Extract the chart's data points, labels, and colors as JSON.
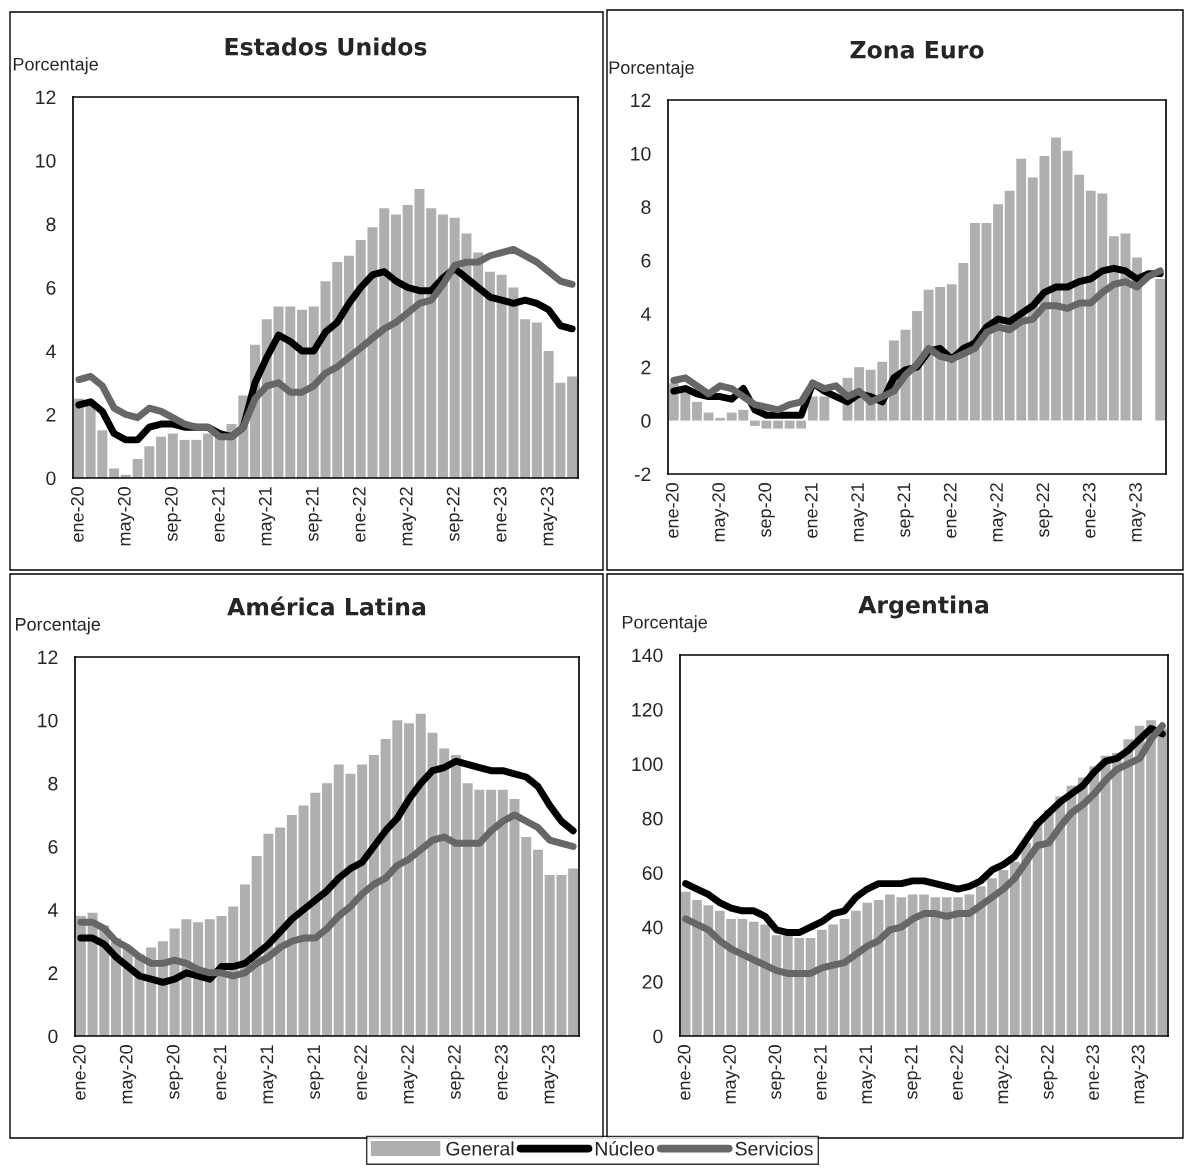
{
  "chart_data": [
    {
      "type": "bar",
      "title": "Estados Unidos",
      "ylabel": "Porcentaje",
      "legend": "bottom",
      "ylim": [
        0,
        12
      ],
      "yticks": [
        0,
        2,
        4,
        6,
        8,
        10,
        12
      ],
      "grid": false,
      "categories": [
        "ene-20",
        null,
        null,
        null,
        "may-20",
        null,
        null,
        null,
        "sep-20",
        null,
        null,
        null,
        "ene-21",
        null,
        null,
        null,
        "may-21",
        null,
        null,
        null,
        "sep-21",
        null,
        null,
        null,
        "ene-22",
        null,
        null,
        null,
        "may-22",
        null,
        null,
        null,
        "sep-22",
        null,
        null,
        null,
        "ene-23",
        null,
        null,
        null,
        "may-23",
        null,
        null
      ],
      "series": [
        {
          "name": "General",
          "type": "bar",
          "color": "#afafaf",
          "values": [
            2.5,
            2.3,
            1.5,
            0.3,
            0.1,
            0.6,
            1.0,
            1.3,
            1.4,
            1.2,
            1.2,
            1.4,
            1.4,
            1.7,
            2.6,
            4.2,
            5.0,
            5.4,
            5.4,
            5.3,
            5.4,
            6.2,
            6.8,
            7.0,
            7.5,
            7.9,
            8.5,
            8.3,
            8.6,
            9.1,
            8.5,
            8.3,
            8.2,
            7.7,
            7.1,
            6.5,
            6.4,
            6.0,
            5.0,
            4.9,
            4.0,
            3.0,
            3.2
          ]
        },
        {
          "name": "Núcleo",
          "type": "line",
          "color": "#000000",
          "values": [
            2.3,
            2.4,
            2.1,
            1.4,
            1.2,
            1.2,
            1.6,
            1.7,
            1.7,
            1.6,
            1.6,
            1.6,
            1.4,
            1.3,
            1.6,
            3.0,
            3.8,
            4.5,
            4.3,
            4.0,
            4.0,
            4.6,
            4.9,
            5.5,
            6.0,
            6.4,
            6.5,
            6.2,
            6.0,
            5.9,
            5.9,
            6.3,
            6.6,
            6.3,
            6.0,
            5.7,
            5.6,
            5.5,
            5.6,
            5.5,
            5.3,
            4.8,
            4.7
          ]
        },
        {
          "name": "Servicios",
          "type": "line",
          "color": "#676767",
          "values": [
            3.1,
            3.2,
            2.9,
            2.2,
            2.0,
            1.9,
            2.2,
            2.1,
            1.9,
            1.7,
            1.6,
            1.6,
            1.3,
            1.3,
            1.6,
            2.5,
            2.9,
            3.0,
            2.7,
            2.7,
            2.9,
            3.3,
            3.5,
            3.8,
            4.1,
            4.4,
            4.7,
            4.9,
            5.2,
            5.5,
            5.6,
            6.1,
            6.7,
            6.8,
            6.8,
            7.0,
            7.1,
            7.2,
            7.0,
            6.8,
            6.5,
            6.2,
            6.1
          ]
        }
      ]
    },
    {
      "type": "bar",
      "title": "Zona Euro",
      "ylabel": "Porcentaje",
      "legend": "bottom",
      "ylim": [
        -2,
        12
      ],
      "yticks": [
        -2,
        0,
        2,
        4,
        6,
        8,
        10,
        12
      ],
      "grid": false,
      "categories": [
        "ene-20",
        null,
        null,
        null,
        "may-20",
        null,
        null,
        null,
        "sep-20",
        null,
        null,
        null,
        "ene-21",
        null,
        null,
        null,
        "may-21",
        null,
        null,
        null,
        "sep-21",
        null,
        null,
        null,
        "ene-22",
        null,
        null,
        null,
        "may-22",
        null,
        null,
        null,
        "sep-22",
        null,
        null,
        null,
        "ene-23",
        null,
        null,
        null,
        "may-23",
        null,
        null
      ],
      "series": [
        {
          "name": "General",
          "type": "bar",
          "color": "#afafaf",
          "values": [
            1.4,
            1.2,
            0.7,
            0.3,
            0.1,
            0.3,
            0.4,
            -0.2,
            -0.3,
            -0.3,
            -0.3,
            -0.3,
            0.9,
            0.9,
            null,
            1.6,
            2.0,
            1.9,
            2.2,
            3.0,
            3.4,
            4.1,
            4.9,
            5.0,
            5.1,
            5.9,
            7.4,
            7.4,
            8.1,
            8.6,
            9.8,
            9.1,
            9.9,
            10.6,
            10.1,
            9.2,
            8.6,
            8.5,
            6.9,
            7.0,
            6.1,
            null,
            5.3
          ]
        },
        {
          "name": "Núcleo",
          "type": "line",
          "color": "#000000",
          "values": [
            1.1,
            1.2,
            1.0,
            0.9,
            0.9,
            0.8,
            1.2,
            0.4,
            0.2,
            0.2,
            0.2,
            0.2,
            1.4,
            1.1,
            0.9,
            0.7,
            1.0,
            0.9,
            0.7,
            1.6,
            1.9,
            2.0,
            2.6,
            2.7,
            2.3,
            2.7,
            2.9,
            3.5,
            3.8,
            3.7,
            4.0,
            4.3,
            4.8,
            5.0,
            5.0,
            5.2,
            5.3,
            5.6,
            5.7,
            5.6,
            5.3,
            5.5,
            5.5
          ]
        },
        {
          "name": "Servicios",
          "type": "line",
          "color": "#676767",
          "values": [
            1.5,
            1.6,
            1.3,
            1.0,
            1.3,
            1.2,
            0.9,
            0.6,
            0.5,
            0.4,
            0.6,
            0.7,
            1.4,
            1.2,
            1.3,
            0.9,
            1.1,
            0.7,
            0.9,
            1.1,
            1.7,
            2.1,
            2.7,
            2.4,
            2.3,
            2.5,
            2.7,
            3.3,
            3.5,
            3.4,
            3.7,
            3.8,
            4.3,
            4.3,
            4.2,
            4.4,
            4.4,
            4.8,
            5.1,
            5.2,
            5.0,
            5.4,
            5.6
          ]
        }
      ]
    },
    {
      "type": "bar",
      "title": "América Latina",
      "ylabel": "Porcentaje",
      "legend": "bottom",
      "ylim": [
        0,
        12
      ],
      "yticks": [
        0,
        2,
        4,
        6,
        8,
        10,
        12
      ],
      "grid": false,
      "categories": [
        "ene-20",
        null,
        null,
        null,
        "may-20",
        null,
        null,
        null,
        "sep-20",
        null,
        null,
        null,
        "ene-21",
        null,
        null,
        null,
        "may-21",
        null,
        null,
        null,
        "sep-21",
        null,
        null,
        null,
        "ene-22",
        null,
        null,
        null,
        "may-22",
        null,
        null,
        null,
        "sep-22",
        null,
        null,
        null,
        "ene-23",
        null,
        null,
        null,
        "may-23",
        null,
        null
      ],
      "series": [
        {
          "name": "General",
          "type": "bar",
          "color": "#afafaf",
          "values": [
            3.8,
            3.9,
            3.5,
            3.1,
            2.8,
            2.6,
            2.8,
            3.0,
            3.4,
            3.7,
            3.6,
            3.7,
            3.8,
            4.1,
            4.8,
            5.7,
            6.4,
            6.6,
            7.0,
            7.3,
            7.7,
            8.0,
            8.6,
            8.3,
            8.6,
            8.9,
            9.4,
            10.0,
            9.9,
            10.2,
            9.6,
            9.1,
            8.9,
            8.0,
            7.8,
            7.8,
            7.8,
            7.5,
            6.3,
            5.9,
            5.1,
            5.1,
            5.3
          ]
        },
        {
          "name": "Núcleo",
          "type": "line",
          "color": "#000000",
          "values": [
            3.1,
            3.1,
            2.9,
            2.5,
            2.2,
            1.9,
            1.8,
            1.7,
            1.8,
            2.0,
            1.9,
            1.8,
            2.2,
            2.2,
            2.3,
            2.6,
            2.9,
            3.3,
            3.7,
            4.0,
            4.3,
            4.6,
            5.0,
            5.3,
            5.5,
            6.0,
            6.5,
            6.9,
            7.5,
            8.0,
            8.4,
            8.5,
            8.7,
            8.6,
            8.5,
            8.4,
            8.4,
            8.3,
            8.2,
            7.9,
            7.3,
            6.8,
            6.5
          ]
        },
        {
          "name": "Servicios",
          "type": "line",
          "color": "#676767",
          "values": [
            3.6,
            3.6,
            3.4,
            3.0,
            2.8,
            2.5,
            2.3,
            2.3,
            2.4,
            2.3,
            2.1,
            2.0,
            2.0,
            1.9,
            2.0,
            2.3,
            2.5,
            2.8,
            3.0,
            3.1,
            3.1,
            3.4,
            3.8,
            4.1,
            4.5,
            4.8,
            5.0,
            5.4,
            5.6,
            5.9,
            6.2,
            6.3,
            6.1,
            6.1,
            6.1,
            6.5,
            6.8,
            7.0,
            6.8,
            6.6,
            6.2,
            6.1,
            6.0
          ]
        }
      ]
    },
    {
      "type": "bar",
      "title": "Argentina",
      "ylabel": "Porcentaje",
      "legend": "bottom",
      "ylim": [
        0,
        140
      ],
      "yticks": [
        0,
        20,
        40,
        60,
        80,
        100,
        120,
        140
      ],
      "grid": false,
      "categories": [
        "ene-20",
        null,
        null,
        null,
        "may-20",
        null,
        null,
        null,
        "sep-20",
        null,
        null,
        null,
        "ene-21",
        null,
        null,
        null,
        "may-21",
        null,
        null,
        null,
        "sep-21",
        null,
        null,
        null,
        "ene-22",
        null,
        null,
        null,
        "may-22",
        null,
        null,
        null,
        "sep-22",
        null,
        null,
        null,
        "ene-23",
        null,
        null,
        null,
        "may-23",
        null,
        null
      ],
      "series": [
        {
          "name": "General",
          "type": "bar",
          "color": "#afafaf",
          "values": [
            53,
            50,
            48,
            46,
            43,
            43,
            42,
            41,
            37,
            37,
            36,
            36,
            39,
            41,
            43,
            46,
            49,
            50,
            52,
            51,
            52,
            52,
            51,
            51,
            51,
            52,
            55,
            58,
            61,
            64,
            71,
            79,
            83,
            88,
            92,
            95,
            99,
            103,
            104,
            109,
            114,
            116,
            113
          ]
        },
        {
          "name": "Núcleo",
          "type": "line",
          "color": "#000000",
          "values": [
            56,
            54,
            52,
            49,
            47,
            46,
            46,
            44,
            39,
            38,
            38,
            40,
            42,
            45,
            46,
            51,
            54,
            56,
            56,
            56,
            57,
            57,
            56,
            55,
            54,
            55,
            57,
            61,
            63,
            66,
            72,
            78,
            82,
            86,
            89,
            92,
            97,
            101,
            102,
            105,
            109,
            113,
            111
          ]
        },
        {
          "name": "Servicios",
          "type": "line",
          "color": "#676767",
          "values": [
            43,
            41,
            39,
            35,
            32,
            30,
            28,
            26,
            24,
            23,
            23,
            23,
            25,
            26,
            27,
            30,
            33,
            35,
            39,
            40,
            43,
            45,
            45,
            44,
            45,
            45,
            48,
            51,
            54,
            58,
            64,
            70,
            71,
            77,
            82,
            85,
            89,
            94,
            98,
            100,
            102,
            109,
            114
          ]
        }
      ]
    }
  ]
}
